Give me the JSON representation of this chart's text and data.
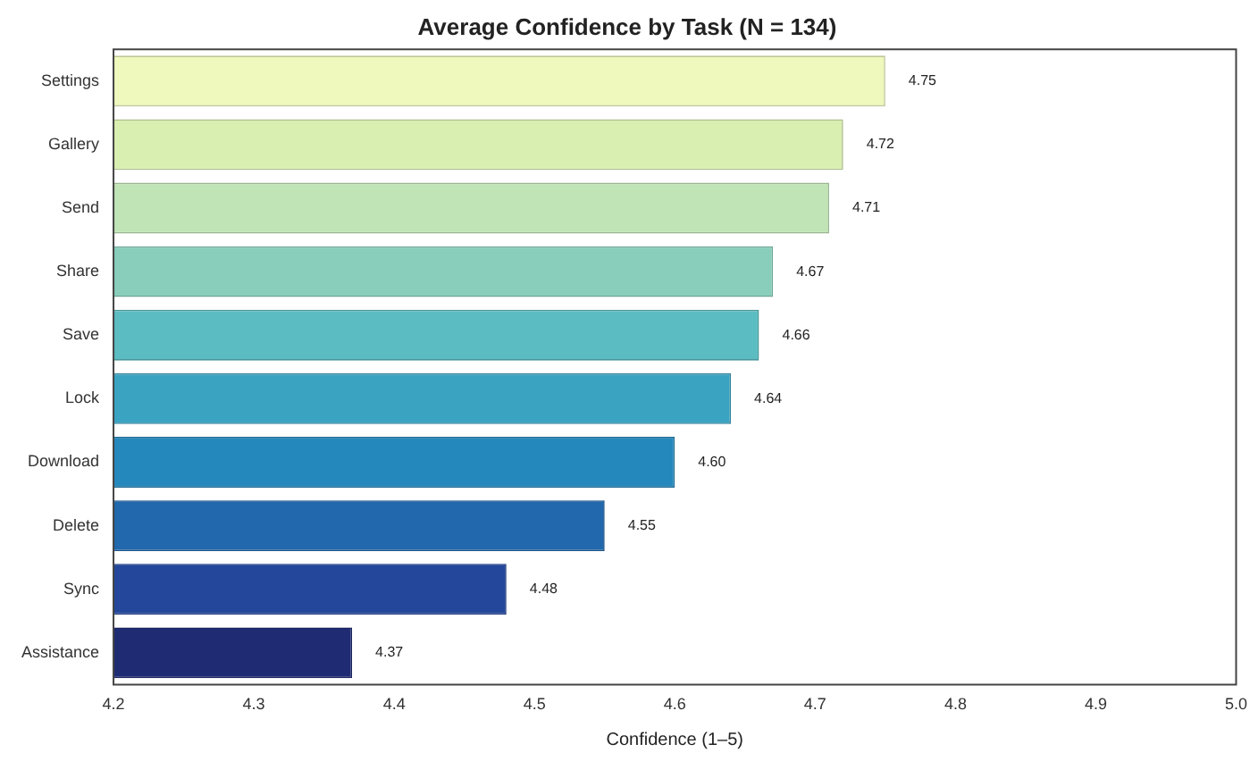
{
  "chart_data": {
    "type": "bar",
    "orientation": "horizontal",
    "title": "Average Confidence by Task (N = 134)",
    "xlabel": "Confidence (1–5)",
    "categories": [
      "Settings",
      "Gallery",
      "Send",
      "Share",
      "Save",
      "Lock",
      "Download",
      "Delete",
      "Sync",
      "Assistance"
    ],
    "values": [
      4.75,
      4.72,
      4.71,
      4.67,
      4.66,
      4.64,
      4.6,
      4.55,
      4.48,
      4.37
    ],
    "value_labels": [
      "4.75",
      "4.72",
      "4.71",
      "4.67",
      "4.66",
      "4.64",
      "4.60",
      "4.55",
      "4.48",
      "4.37"
    ],
    "colors": [
      "#eff8bd",
      "#d9efb2",
      "#c0e4b5",
      "#88cebb",
      "#5bbdc1",
      "#3ba3c2",
      "#2588bc",
      "#2168ac",
      "#24479b",
      "#1f2c74"
    ],
    "xlim": [
      4.2,
      5.0
    ],
    "xticks": [
      4.2,
      4.3,
      4.4,
      4.5,
      4.6,
      4.7,
      4.8,
      4.9,
      {
        "value": 5.0,
        "label": "5.0"
      }
    ],
    "grid": false,
    "legend": false
  }
}
